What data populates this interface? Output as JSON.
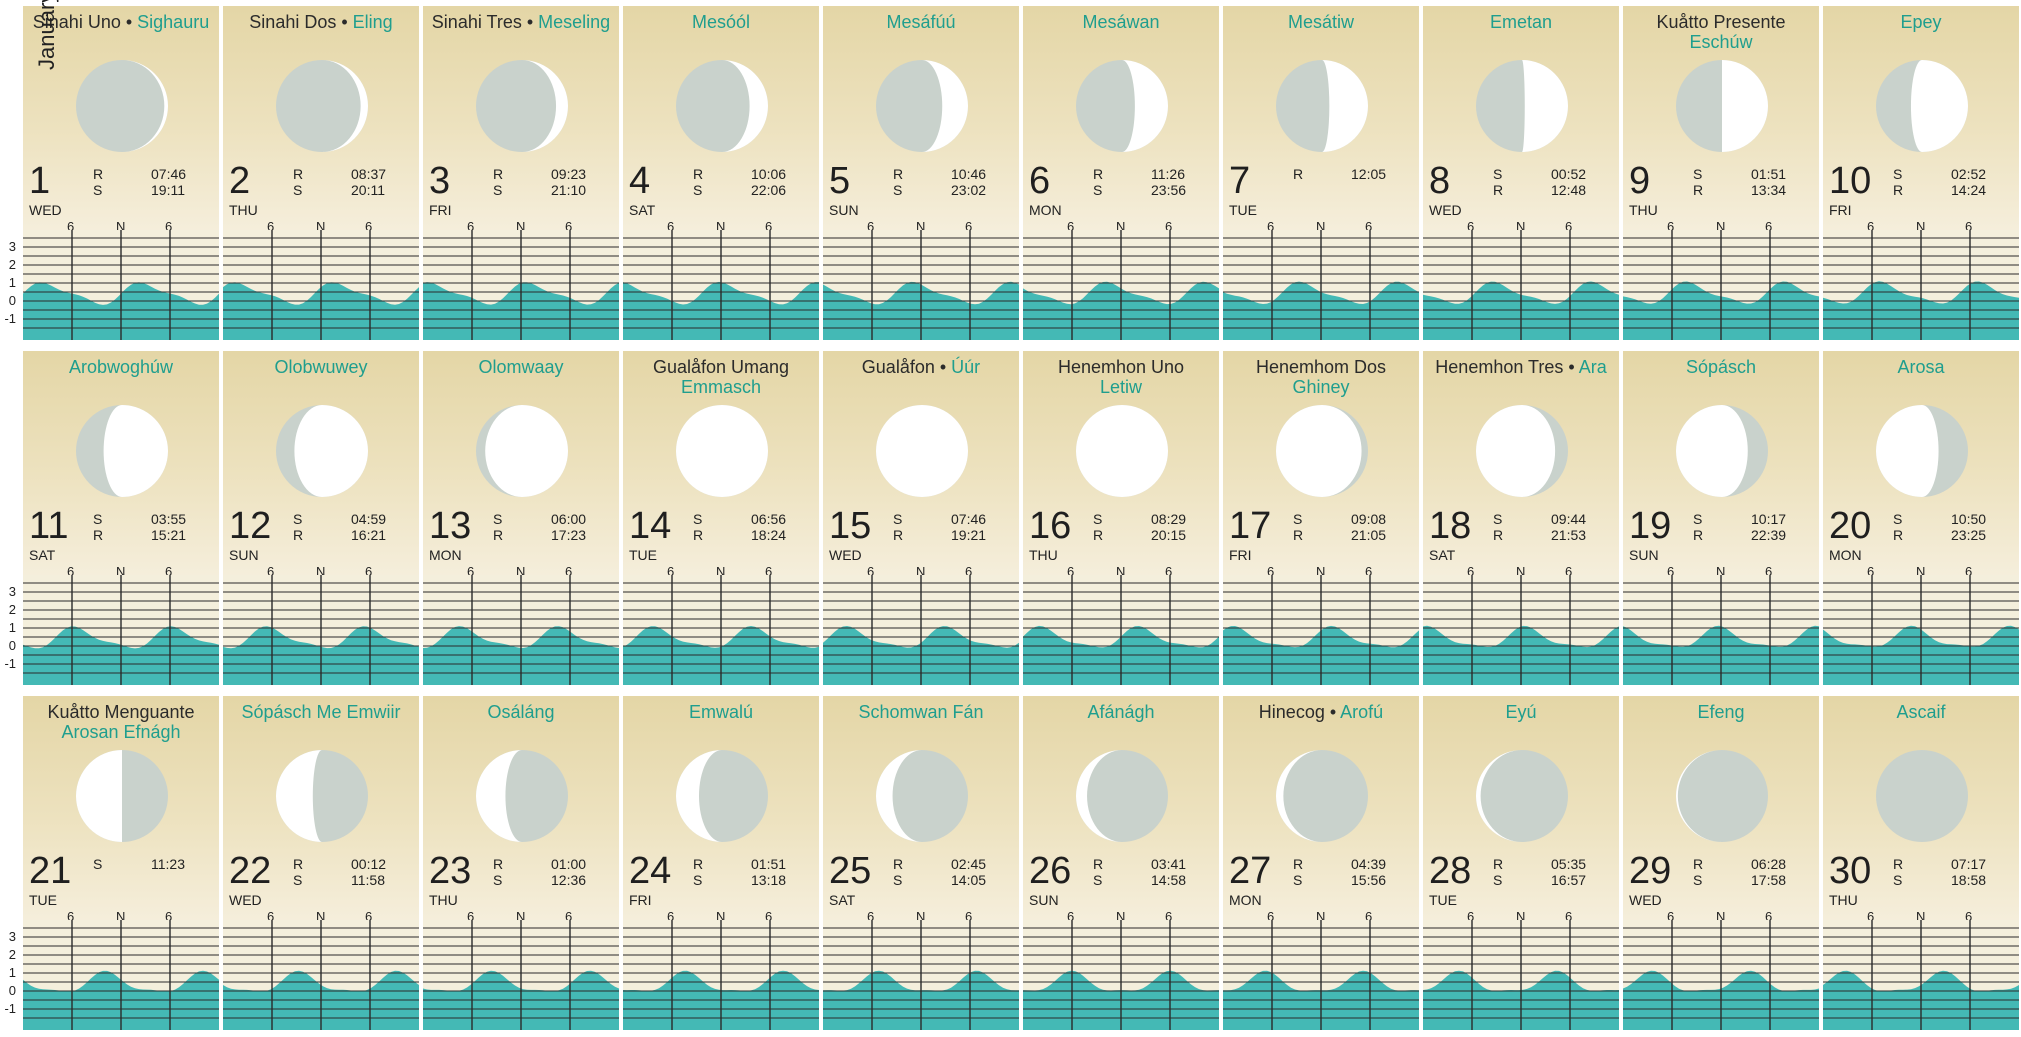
{
  "month": "January",
  "axis_labels": [
    "3",
    "2",
    "1",
    "0",
    "-1"
  ],
  "tick_labels": [
    "6",
    "N",
    "6"
  ],
  "colors": {
    "teal": "#1f9e8e",
    "tide_fill": "#44b9b5",
    "moon_dark": "#c9d2cc",
    "moon_light": "#ffffff"
  },
  "days": [
    {
      "day": "1",
      "wd": "WED",
      "n1": "Sinahi Uno",
      "n2": "Sighauru",
      "sep": "•",
      "lines": [
        {
          "l": "R",
          "t": "07:46"
        },
        {
          "l": "S",
          "t": "19:11"
        }
      ],
      "illum": 0.04,
      "wax": true
    },
    {
      "day": "2",
      "wd": "THU",
      "n1": "Sinahi Dos",
      "n2": "Eling",
      "sep": "•",
      "lines": [
        {
          "l": "R",
          "t": "08:37"
        },
        {
          "l": "S",
          "t": "20:11"
        }
      ],
      "illum": 0.08,
      "wax": true
    },
    {
      "day": "3",
      "wd": "FRI",
      "n1": "Sinahi Tres",
      "n2": "Meseling",
      "sep": "•",
      "lines": [
        {
          "l": "R",
          "t": "09:23"
        },
        {
          "l": "S",
          "t": "21:10"
        }
      ],
      "illum": 0.13,
      "wax": true
    },
    {
      "day": "4",
      "wd": "SAT",
      "n1": "Mesóól",
      "n2": "",
      "teal": true,
      "lines": [
        {
          "l": "R",
          "t": "10:06"
        },
        {
          "l": "S",
          "t": "22:06"
        }
      ],
      "illum": 0.2,
      "wax": true
    },
    {
      "day": "5",
      "wd": "SUN",
      "n1": "Mesáfúú",
      "n2": "",
      "teal": true,
      "lines": [
        {
          "l": "R",
          "t": "10:46"
        },
        {
          "l": "S",
          "t": "23:02"
        }
      ],
      "illum": 0.28,
      "wax": true
    },
    {
      "day": "6",
      "wd": "MON",
      "n1": "Mesáwan",
      "n2": "",
      "teal": true,
      "lines": [
        {
          "l": "R",
          "t": "11:26"
        },
        {
          "l": "S",
          "t": "23:56"
        }
      ],
      "illum": 0.36,
      "wax": true
    },
    {
      "day": "7",
      "wd": "TUE",
      "n1": "Mesátiw",
      "n2": "",
      "teal": true,
      "lines": [
        {
          "l": "R",
          "t": "12:05"
        }
      ],
      "illum": 0.42,
      "wax": true
    },
    {
      "day": "8",
      "wd": "WED",
      "n1": "Emetan",
      "n2": "",
      "teal": true,
      "lines": [
        {
          "l": "S",
          "t": "00:52"
        },
        {
          "l": "R",
          "t": "12:48"
        }
      ],
      "illum": 0.47,
      "wax": true
    },
    {
      "day": "9",
      "wd": "THU",
      "n1": "Kuåtto Presente",
      "n2": "Eschúw",
      "stack": true,
      "lines": [
        {
          "l": "S",
          "t": "01:51"
        },
        {
          "l": "R",
          "t": "13:34"
        }
      ],
      "illum": 0.5,
      "wax": true
    },
    {
      "day": "10",
      "wd": "FRI",
      "n1": "Epey",
      "n2": "",
      "teal": true,
      "lines": [
        {
          "l": "S",
          "t": "02:52"
        },
        {
          "l": "R",
          "t": "14:24"
        }
      ],
      "illum": 0.62,
      "wax": true
    },
    {
      "day": "11",
      "wd": "SAT",
      "n1": "Arobwoghúw",
      "n2": "",
      "teal": true,
      "lines": [
        {
          "l": "S",
          "t": "03:55"
        },
        {
          "l": "R",
          "t": "15:21"
        }
      ],
      "illum": 0.7,
      "wax": true
    },
    {
      "day": "12",
      "wd": "SUN",
      "n1": "Olobwuwey",
      "n2": "",
      "teal": true,
      "lines": [
        {
          "l": "S",
          "t": "04:59"
        },
        {
          "l": "R",
          "t": "16:21"
        }
      ],
      "illum": 0.8,
      "wax": true
    },
    {
      "day": "13",
      "wd": "MON",
      "n1": "Olomwaay",
      "n2": "",
      "teal": true,
      "lines": [
        {
          "l": "S",
          "t": "06:00"
        },
        {
          "l": "R",
          "t": "17:23"
        }
      ],
      "illum": 0.9,
      "wax": true
    },
    {
      "day": "14",
      "wd": "TUE",
      "n1": "Gualåfon Umang",
      "n2": "Emmasch",
      "stack": true,
      "lines": [
        {
          "l": "S",
          "t": "06:56"
        },
        {
          "l": "R",
          "t": "18:24"
        }
      ],
      "illum": 1.0,
      "wax": true
    },
    {
      "day": "15",
      "wd": "WED",
      "n1": "Gualåfon",
      "n2": "Úúr",
      "sep": "•",
      "lines": [
        {
          "l": "S",
          "t": "07:46"
        },
        {
          "l": "R",
          "t": "19:21"
        }
      ],
      "illum": 1.0,
      "wax": false
    },
    {
      "day": "16",
      "wd": "THU",
      "n1": "Henemhon Uno",
      "n2": "Letiw",
      "stack": true,
      "lines": [
        {
          "l": "S",
          "t": "08:29"
        },
        {
          "l": "R",
          "t": "20:15"
        }
      ],
      "illum": 1.0,
      "wax": false
    },
    {
      "day": "17",
      "wd": "FRI",
      "n1": "Henemhom Dos",
      "n2": "Ghiney",
      "stack": true,
      "lines": [
        {
          "l": "S",
          "t": "09:08"
        },
        {
          "l": "R",
          "t": "21:05"
        }
      ],
      "illum": 0.93,
      "wax": false
    },
    {
      "day": "18",
      "wd": "SAT",
      "n1": "Henemhon Tres",
      "n2": "Ara",
      "sep": "•",
      "lines": [
        {
          "l": "S",
          "t": "09:44"
        },
        {
          "l": "R",
          "t": "21:53"
        }
      ],
      "illum": 0.86,
      "wax": false
    },
    {
      "day": "19",
      "wd": "SUN",
      "n1": "Sópásch",
      "n2": "",
      "teal": true,
      "lines": [
        {
          "l": "S",
          "t": "10:17"
        },
        {
          "l": "R",
          "t": "22:39"
        }
      ],
      "illum": 0.78,
      "wax": false
    },
    {
      "day": "20",
      "wd": "MON",
      "n1": "Arosa",
      "n2": "",
      "teal": true,
      "lines": [
        {
          "l": "S",
          "t": "10:50"
        },
        {
          "l": "R",
          "t": "23:25"
        }
      ],
      "illum": 0.68,
      "wax": false
    },
    {
      "day": "21",
      "wd": "TUE",
      "n1": "Kuåtto Menguante",
      "n2": "Arosan Efnágh",
      "stack": true,
      "lines": [
        {
          "l": "S",
          "t": "11:23"
        }
      ],
      "illum": 0.5,
      "wax": false
    },
    {
      "day": "22",
      "wd": "WED",
      "n1": "Sópásch Me Emwiir",
      "n2": "",
      "teal": true,
      "lines": [
        {
          "l": "R",
          "t": "00:12"
        },
        {
          "l": "S",
          "t": "11:58"
        }
      ],
      "illum": 0.4,
      "wax": false
    },
    {
      "day": "23",
      "wd": "THU",
      "n1": "Osáláng",
      "n2": "",
      "teal": true,
      "lines": [
        {
          "l": "R",
          "t": "01:00"
        },
        {
          "l": "S",
          "t": "12:36"
        }
      ],
      "illum": 0.32,
      "wax": false
    },
    {
      "day": "24",
      "wd": "FRI",
      "n1": "Emwalú",
      "n2": "",
      "teal": true,
      "lines": [
        {
          "l": "R",
          "t": "01:51"
        },
        {
          "l": "S",
          "t": "13:18"
        }
      ],
      "illum": 0.25,
      "wax": false
    },
    {
      "day": "25",
      "wd": "SAT",
      "n1": "Schomwan Fán",
      "n2": "",
      "teal": true,
      "lines": [
        {
          "l": "R",
          "t": "02:45"
        },
        {
          "l": "S",
          "t": "14:05"
        }
      ],
      "illum": 0.18,
      "wax": false
    },
    {
      "day": "26",
      "wd": "SUN",
      "n1": "Afánágh",
      "n2": "",
      "teal": true,
      "lines": [
        {
          "l": "R",
          "t": "03:41"
        },
        {
          "l": "S",
          "t": "14:58"
        }
      ],
      "illum": 0.12,
      "wax": false
    },
    {
      "day": "27",
      "wd": "MON",
      "n1": "Hinecog",
      "n2": "Arofú",
      "sep": "•",
      "lines": [
        {
          "l": "R",
          "t": "04:39"
        },
        {
          "l": "S",
          "t": "15:56"
        }
      ],
      "illum": 0.08,
      "wax": false
    },
    {
      "day": "28",
      "wd": "TUE",
      "n1": "Eyú",
      "n2": "",
      "teal": true,
      "lines": [
        {
          "l": "R",
          "t": "05:35"
        },
        {
          "l": "S",
          "t": "16:57"
        }
      ],
      "illum": 0.05,
      "wax": false
    },
    {
      "day": "29",
      "wd": "WED",
      "n1": "Efeng",
      "n2": "",
      "teal": true,
      "lines": [
        {
          "l": "R",
          "t": "06:28"
        },
        {
          "l": "S",
          "t": "17:58"
        }
      ],
      "illum": 0.02,
      "wax": false
    },
    {
      "day": "30",
      "wd": "THU",
      "n1": "Ascaif",
      "n2": "",
      "teal": true,
      "lines": [
        {
          "l": "R",
          "t": "07:17"
        },
        {
          "l": "S",
          "t": "18:58"
        }
      ],
      "illum": 0.01,
      "wax": false
    }
  ]
}
